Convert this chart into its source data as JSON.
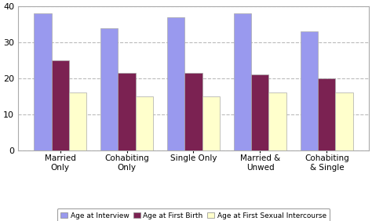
{
  "categories": [
    "Married\nOnly",
    "Cohabiting\nOnly",
    "Single Only",
    "Married &\nUnwed",
    "Cohabiting\n& Single"
  ],
  "series": {
    "Age at Interview": [
      38,
      34,
      37,
      38,
      33
    ],
    "Age at First Birth": [
      25,
      21.5,
      21.5,
      21,
      20
    ],
    "Age at First Sexual Intercourse": [
      16,
      15,
      15,
      16,
      16
    ]
  },
  "colors": {
    "Age at Interview": "#9999EE",
    "Age at First Birth": "#7B2252",
    "Age at First Sexual Intercourse": "#FFFFCC"
  },
  "bar_edge_color": "#AAAAAA",
  "ylim": [
    0,
    40
  ],
  "yticks": [
    0,
    10,
    20,
    30,
    40
  ],
  "grid_color": "#BBBBBB",
  "background_color": "#FFFFFF",
  "plot_bg_color": "#FFFFFF",
  "bar_width": 0.26,
  "figsize": [
    4.74,
    2.82
  ],
  "dpi": 100
}
